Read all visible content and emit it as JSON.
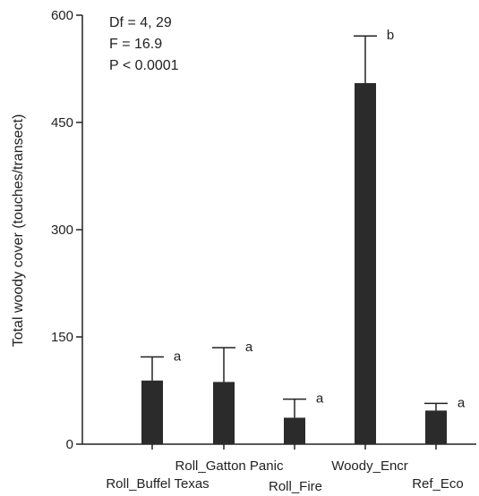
{
  "chart_data": {
    "type": "bar",
    "title": "",
    "xlabel": "",
    "ylabel": "Total woody cover (touches/transect)",
    "ylim": [
      0,
      600
    ],
    "yticks": [
      0,
      150,
      300,
      450,
      600
    ],
    "grid": false,
    "legend": "none",
    "categories": [
      "Roll_Buffel Texas",
      "Roll_Gatton Panic",
      "Roll_Fire",
      "Woody_Encr",
      "Ref_Eco"
    ],
    "values": [
      89,
      87,
      37,
      505,
      47
    ],
    "errors": [
      33,
      48,
      26,
      66,
      10
    ],
    "significance": [
      "a",
      "a",
      "a",
      "b",
      "a"
    ],
    "bar_color": "#2b2b2b",
    "stats": [
      "Df = 4, 29",
      "F = 16.9",
      "P < 0.0001"
    ]
  }
}
